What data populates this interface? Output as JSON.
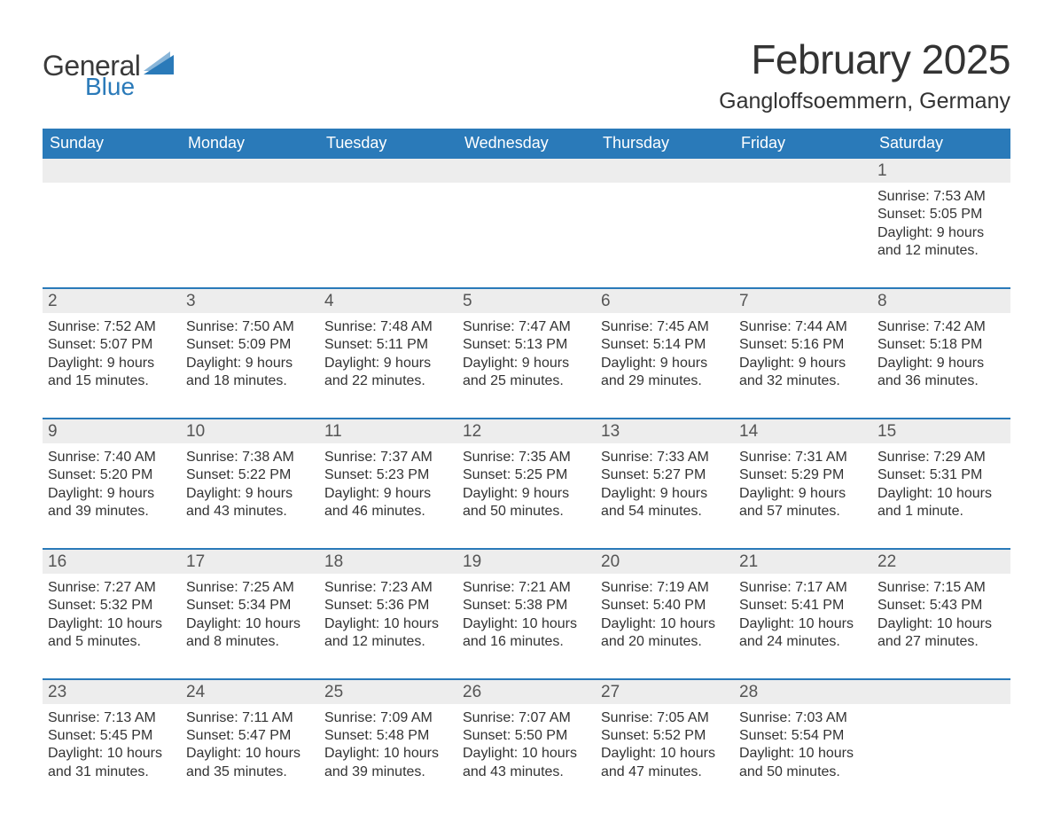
{
  "brand": {
    "general": "General",
    "blue": "Blue",
    "accent_color": "#2a7ab9"
  },
  "title": "February 2025",
  "location": "Gangloffsoemmern, Germany",
  "colors": {
    "header_bg": "#2a7ab9",
    "header_text": "#ffffff",
    "daynum_bg": "#ededed",
    "divider": "#2a7ab9",
    "body_text": "#333333",
    "background": "#ffffff"
  },
  "typography": {
    "title_fontsize": 46,
    "location_fontsize": 25,
    "dow_fontsize": 18,
    "daynum_fontsize": 19,
    "body_fontsize": 16
  },
  "days_of_week": [
    "Sunday",
    "Monday",
    "Tuesday",
    "Wednesday",
    "Thursday",
    "Friday",
    "Saturday"
  ],
  "weeks": [
    [
      null,
      null,
      null,
      null,
      null,
      null,
      {
        "n": "1",
        "sunrise": "Sunrise: 7:53 AM",
        "sunset": "Sunset: 5:05 PM",
        "dl1": "Daylight: 9 hours",
        "dl2": "and 12 minutes."
      }
    ],
    [
      {
        "n": "2",
        "sunrise": "Sunrise: 7:52 AM",
        "sunset": "Sunset: 5:07 PM",
        "dl1": "Daylight: 9 hours",
        "dl2": "and 15 minutes."
      },
      {
        "n": "3",
        "sunrise": "Sunrise: 7:50 AM",
        "sunset": "Sunset: 5:09 PM",
        "dl1": "Daylight: 9 hours",
        "dl2": "and 18 minutes."
      },
      {
        "n": "4",
        "sunrise": "Sunrise: 7:48 AM",
        "sunset": "Sunset: 5:11 PM",
        "dl1": "Daylight: 9 hours",
        "dl2": "and 22 minutes."
      },
      {
        "n": "5",
        "sunrise": "Sunrise: 7:47 AM",
        "sunset": "Sunset: 5:13 PM",
        "dl1": "Daylight: 9 hours",
        "dl2": "and 25 minutes."
      },
      {
        "n": "6",
        "sunrise": "Sunrise: 7:45 AM",
        "sunset": "Sunset: 5:14 PM",
        "dl1": "Daylight: 9 hours",
        "dl2": "and 29 minutes."
      },
      {
        "n": "7",
        "sunrise": "Sunrise: 7:44 AM",
        "sunset": "Sunset: 5:16 PM",
        "dl1": "Daylight: 9 hours",
        "dl2": "and 32 minutes."
      },
      {
        "n": "8",
        "sunrise": "Sunrise: 7:42 AM",
        "sunset": "Sunset: 5:18 PM",
        "dl1": "Daylight: 9 hours",
        "dl2": "and 36 minutes."
      }
    ],
    [
      {
        "n": "9",
        "sunrise": "Sunrise: 7:40 AM",
        "sunset": "Sunset: 5:20 PM",
        "dl1": "Daylight: 9 hours",
        "dl2": "and 39 minutes."
      },
      {
        "n": "10",
        "sunrise": "Sunrise: 7:38 AM",
        "sunset": "Sunset: 5:22 PM",
        "dl1": "Daylight: 9 hours",
        "dl2": "and 43 minutes."
      },
      {
        "n": "11",
        "sunrise": "Sunrise: 7:37 AM",
        "sunset": "Sunset: 5:23 PM",
        "dl1": "Daylight: 9 hours",
        "dl2": "and 46 minutes."
      },
      {
        "n": "12",
        "sunrise": "Sunrise: 7:35 AM",
        "sunset": "Sunset: 5:25 PM",
        "dl1": "Daylight: 9 hours",
        "dl2": "and 50 minutes."
      },
      {
        "n": "13",
        "sunrise": "Sunrise: 7:33 AM",
        "sunset": "Sunset: 5:27 PM",
        "dl1": "Daylight: 9 hours",
        "dl2": "and 54 minutes."
      },
      {
        "n": "14",
        "sunrise": "Sunrise: 7:31 AM",
        "sunset": "Sunset: 5:29 PM",
        "dl1": "Daylight: 9 hours",
        "dl2": "and 57 minutes."
      },
      {
        "n": "15",
        "sunrise": "Sunrise: 7:29 AM",
        "sunset": "Sunset: 5:31 PM",
        "dl1": "Daylight: 10 hours",
        "dl2": "and 1 minute."
      }
    ],
    [
      {
        "n": "16",
        "sunrise": "Sunrise: 7:27 AM",
        "sunset": "Sunset: 5:32 PM",
        "dl1": "Daylight: 10 hours",
        "dl2": "and 5 minutes."
      },
      {
        "n": "17",
        "sunrise": "Sunrise: 7:25 AM",
        "sunset": "Sunset: 5:34 PM",
        "dl1": "Daylight: 10 hours",
        "dl2": "and 8 minutes."
      },
      {
        "n": "18",
        "sunrise": "Sunrise: 7:23 AM",
        "sunset": "Sunset: 5:36 PM",
        "dl1": "Daylight: 10 hours",
        "dl2": "and 12 minutes."
      },
      {
        "n": "19",
        "sunrise": "Sunrise: 7:21 AM",
        "sunset": "Sunset: 5:38 PM",
        "dl1": "Daylight: 10 hours",
        "dl2": "and 16 minutes."
      },
      {
        "n": "20",
        "sunrise": "Sunrise: 7:19 AM",
        "sunset": "Sunset: 5:40 PM",
        "dl1": "Daylight: 10 hours",
        "dl2": "and 20 minutes."
      },
      {
        "n": "21",
        "sunrise": "Sunrise: 7:17 AM",
        "sunset": "Sunset: 5:41 PM",
        "dl1": "Daylight: 10 hours",
        "dl2": "and 24 minutes."
      },
      {
        "n": "22",
        "sunrise": "Sunrise: 7:15 AM",
        "sunset": "Sunset: 5:43 PM",
        "dl1": "Daylight: 10 hours",
        "dl2": "and 27 minutes."
      }
    ],
    [
      {
        "n": "23",
        "sunrise": "Sunrise: 7:13 AM",
        "sunset": "Sunset: 5:45 PM",
        "dl1": "Daylight: 10 hours",
        "dl2": "and 31 minutes."
      },
      {
        "n": "24",
        "sunrise": "Sunrise: 7:11 AM",
        "sunset": "Sunset: 5:47 PM",
        "dl1": "Daylight: 10 hours",
        "dl2": "and 35 minutes."
      },
      {
        "n": "25",
        "sunrise": "Sunrise: 7:09 AM",
        "sunset": "Sunset: 5:48 PM",
        "dl1": "Daylight: 10 hours",
        "dl2": "and 39 minutes."
      },
      {
        "n": "26",
        "sunrise": "Sunrise: 7:07 AM",
        "sunset": "Sunset: 5:50 PM",
        "dl1": "Daylight: 10 hours",
        "dl2": "and 43 minutes."
      },
      {
        "n": "27",
        "sunrise": "Sunrise: 7:05 AM",
        "sunset": "Sunset: 5:52 PM",
        "dl1": "Daylight: 10 hours",
        "dl2": "and 47 minutes."
      },
      {
        "n": "28",
        "sunrise": "Sunrise: 7:03 AM",
        "sunset": "Sunset: 5:54 PM",
        "dl1": "Daylight: 10 hours",
        "dl2": "and 50 minutes."
      },
      null
    ]
  ]
}
